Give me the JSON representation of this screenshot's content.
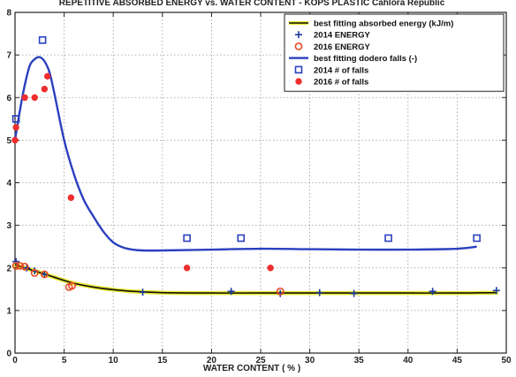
{
  "chart_data": {
    "type": "scatter",
    "title": "REPETITIVE ABSORBED ENERGY vs. WATER CONTENT - KOPS PLASTIC Cahlora Republic",
    "xlabel": "WATER CONTENT ( % )",
    "ylabel": "",
    "xlim": [
      0,
      50
    ],
    "ylim": [
      0,
      8
    ],
    "x_ticks": [
      0,
      5,
      10,
      15,
      20,
      25,
      30,
      35,
      40,
      45,
      50
    ],
    "y_ticks": [
      0,
      1,
      2,
      3,
      4,
      5,
      6,
      7,
      8
    ],
    "grid": true,
    "legend_position": "top-right",
    "series": [
      {
        "name": "best fitting absorbed energy (kJ/m)",
        "kind": "line",
        "color": "#111111",
        "fill_color": "#e8e830",
        "x": [
          0,
          2,
          4,
          6,
          8,
          10,
          12,
          15,
          20,
          25,
          30,
          35,
          40,
          45,
          49
        ],
        "y": [
          2.07,
          1.93,
          1.78,
          1.64,
          1.55,
          1.49,
          1.45,
          1.42,
          1.41,
          1.41,
          1.41,
          1.41,
          1.41,
          1.41,
          1.42
        ]
      },
      {
        "name": "2014 ENERGY",
        "kind": "points",
        "marker": "plus",
        "color": "#1f3a9e",
        "x": [
          0.1,
          1.2,
          2,
          3,
          13,
          22,
          27,
          31,
          34.5,
          42.5,
          49
        ],
        "y": [
          2.15,
          2.0,
          1.93,
          1.85,
          1.43,
          1.45,
          1.4,
          1.42,
          1.4,
          1.45,
          1.47
        ]
      },
      {
        "name": "2016 ENERGY",
        "kind": "points",
        "marker": "open-circle",
        "color": "#e8481e",
        "x": [
          0.1,
          0.5,
          1,
          2,
          3,
          5.5,
          5.8,
          27
        ],
        "y": [
          2.05,
          2.05,
          2.03,
          1.88,
          1.85,
          1.55,
          1.58,
          1.45
        ]
      },
      {
        "name": "best fitting dodero falls (-)",
        "kind": "line",
        "color": "#2a3fbf",
        "x": [
          0,
          0.5,
          1,
          1.5,
          2,
          2.5,
          3,
          3.5,
          4,
          5,
          6,
          7,
          8,
          9,
          10,
          11,
          12,
          13,
          15,
          20,
          25,
          30,
          35,
          40,
          45,
          47
        ],
        "y": [
          5.0,
          5.7,
          6.3,
          6.75,
          6.9,
          6.95,
          6.85,
          6.6,
          6.1,
          5.0,
          4.2,
          3.6,
          3.2,
          2.85,
          2.6,
          2.48,
          2.43,
          2.41,
          2.41,
          2.43,
          2.45,
          2.44,
          2.43,
          2.43,
          2.45,
          2.5
        ]
      },
      {
        "name": "2014 # of falls",
        "kind": "points",
        "marker": "open-square",
        "color": "#2a3fbf",
        "x": [
          0.1,
          2.8,
          17.5,
          23,
          38,
          47
        ],
        "y": [
          5.5,
          7.35,
          2.7,
          2.7,
          2.7,
          2.7
        ]
      },
      {
        "name": "2016 # of falls",
        "kind": "points",
        "marker": "filled-circle",
        "color": "#ee2e2e",
        "x": [
          0.1,
          0,
          1,
          2,
          3,
          3.3,
          5.7,
          17.5,
          26
        ],
        "y": [
          5.3,
          5.0,
          6.0,
          6.0,
          6.2,
          6.5,
          3.65,
          2.0,
          2.0
        ]
      }
    ]
  }
}
